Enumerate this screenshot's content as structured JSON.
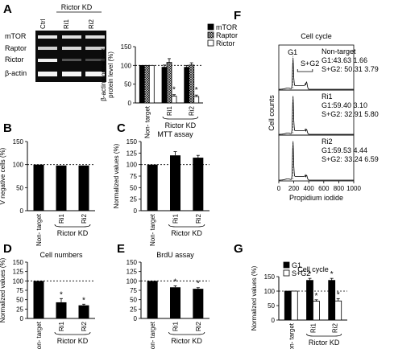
{
  "figure": {
    "panel_labels": {
      "A": "A",
      "B": "B",
      "C": "C",
      "D": "D",
      "E": "E",
      "F": "F",
      "G": "G"
    },
    "group_label": "Rictor KD",
    "nontarget_tick": "Non- target",
    "ri1": "Ri1",
    "ri2": "Ri2"
  },
  "blot": {
    "header": "Rictor KD",
    "lanes": [
      "Ctrl",
      "Ri1",
      "Ri2"
    ],
    "rows": [
      "mTOR",
      "Raptor",
      "Rictor",
      "β-actin"
    ]
  },
  "chart_data": [
    {
      "id": "A",
      "type": "bar",
      "categories": [
        "Non- target",
        "Ri1",
        "Ri2"
      ],
      "series": [
        {
          "name": "mTOR",
          "values": [
            100,
            95,
            95
          ],
          "errors": [
            0,
            6,
            5
          ]
        },
        {
          "name": "Raptor",
          "values": [
            100,
            108,
            101
          ],
          "errors": [
            0,
            10,
            6
          ]
        },
        {
          "name": "Rictor",
          "values": [
            100,
            18,
            17
          ],
          "errors": [
            0,
            4,
            4
          ]
        }
      ],
      "ylabel": "β-actin normalized protein level (%)",
      "ylim": [
        0,
        150
      ],
      "yticks": [
        0,
        50,
        100,
        150
      ],
      "reference_line": 100,
      "asterisks": [
        "*",
        "*"
      ]
    },
    {
      "id": "B",
      "type": "bar",
      "categories": [
        "Non- target",
        "Ri1",
        "Ri2"
      ],
      "values": [
        100,
        98,
        98
      ],
      "ylabel": "Normalized annexin V negative cells (%)",
      "ylim": [
        0,
        150
      ],
      "yticks": [
        0,
        50,
        100,
        150
      ],
      "reference_line": 100
    },
    {
      "id": "C",
      "type": "bar",
      "title": "MTT assay",
      "categories": [
        "Non- target",
        "Ri1",
        "Ri2"
      ],
      "values": [
        100,
        120,
        115
      ],
      "errors": [
        0,
        8,
        5
      ],
      "ylabel": "Normalized values (%)",
      "ylim": [
        0,
        150
      ],
      "yticks": [
        0,
        25,
        50,
        75,
        100,
        125,
        150
      ],
      "reference_line": 100
    },
    {
      "id": "D",
      "type": "bar",
      "title": "Cell numbers",
      "categories": [
        "Non- target",
        "Ri1",
        "Ri2"
      ],
      "values": [
        100,
        43,
        35
      ],
      "errors": [
        0,
        10,
        3
      ],
      "ylabel": "Normalized values (%)",
      "ylim": [
        0,
        150
      ],
      "yticks": [
        0,
        25,
        50,
        75,
        100,
        125,
        150
      ],
      "reference_line": 100,
      "asterisks": [
        "*",
        "*"
      ]
    },
    {
      "id": "E",
      "type": "bar",
      "title": "BrdU assay",
      "categories": [
        "Non- target",
        "Ri1",
        "Ri2"
      ],
      "values": [
        100,
        83,
        79
      ],
      "errors": [
        0,
        4,
        3
      ],
      "ylim": [
        0,
        150
      ],
      "yticks": [
        0,
        25,
        50,
        75,
        100,
        125,
        150
      ],
      "reference_line": 100,
      "asterisks": [
        "*",
        "*"
      ]
    },
    {
      "id": "F",
      "type": "line",
      "title": "Cell cycle",
      "xlabel": "Propidium iodide",
      "ylabel": "Cell counts",
      "xlim": [
        0,
        1000
      ],
      "xticks": [
        0,
        200,
        400,
        600,
        800,
        1000
      ],
      "peak_labels": [
        "G1",
        "S+G2"
      ],
      "subpanels": [
        {
          "name": "Non-target",
          "lines": [
            "G1:43.63  1.66",
            "S+G2: 50.31  3.79"
          ]
        },
        {
          "name": "Ri1",
          "lines": [
            "G1:59.40  3.10",
            "S+G2: 32.91  5.80"
          ]
        },
        {
          "name": "Ri2",
          "lines": [
            "G1:59.53  4.44",
            "S+G2: 33.24  6.59"
          ]
        }
      ]
    },
    {
      "id": "G",
      "type": "bar",
      "title": "Cell cycle",
      "categories": [
        "Non- target",
        "Ri1",
        "Ri2"
      ],
      "series": [
        {
          "name": "G1",
          "values": [
            100,
            137,
            137
          ],
          "errors": [
            0,
            7,
            7
          ]
        },
        {
          "name": "S+G2",
          "values": [
            100,
            65,
            66
          ],
          "errors": [
            0,
            5,
            8
          ]
        }
      ],
      "ylabel": "Normalized values (%)",
      "ylim": [
        0,
        150
      ],
      "yticks": [
        0,
        50,
        100,
        150
      ],
      "reference_line": 100,
      "asterisks": [
        "*",
        "*",
        "*",
        "*"
      ]
    }
  ]
}
